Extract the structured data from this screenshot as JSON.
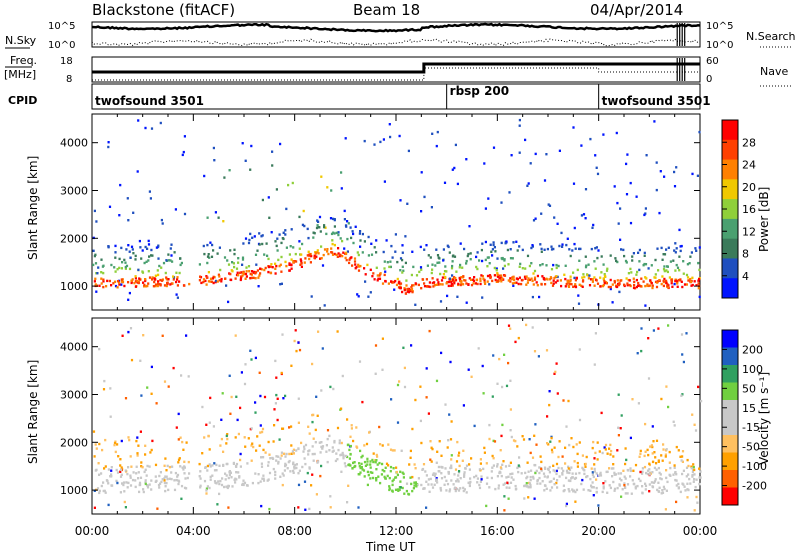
{
  "header": {
    "station": "Blackstone (fitACF)",
    "beam": "Beam 18",
    "date": "04/Apr/2014"
  },
  "left_labels": {
    "nsky": "N.Sky",
    "freq": "Freq.",
    "mhz": "[MHz]",
    "cpid": "CPID"
  },
  "right_labels": {
    "nsearch": "N.Search",
    "nave": "Nave"
  },
  "noise_ticks": {
    "top": "10^5",
    "bottom": "10^0"
  },
  "freq_ticks": {
    "top": "18",
    "bottom": "8"
  },
  "nave_ticks": {
    "top": "60",
    "bottom": "0"
  },
  "cpid_segments": [
    {
      "label": "twofsound 3501",
      "start_hour": 0
    },
    {
      "label": "rbsp 200",
      "start_hour": 14
    },
    {
      "label": "twofsound 3501",
      "start_hour": 20
    }
  ],
  "colors": {
    "power": [
      "#0014ff",
      "#1f4fbf",
      "#3a7a5a",
      "#4aa070",
      "#8fcf3a",
      "#f0c800",
      "#ff8000",
      "#ff4000",
      "#ff0000"
    ],
    "velocity": [
      "#ff0000",
      "#ff6000",
      "#ffa000",
      "#ffc060",
      "#c8c8c8",
      "#c8c8c8",
      "#70d040",
      "#30a060",
      "#2060c0",
      "#0000ff"
    ]
  },
  "chart_data": [
    {
      "type": "heatmap",
      "panel": "power",
      "ylabel": "Slant Range [km]",
      "xlabel": "Time UT",
      "x_ticks": [
        "00:00",
        "04:00",
        "08:00",
        "12:00",
        "16:00",
        "20:00",
        "00:00"
      ],
      "xlim_hours": [
        0,
        24
      ],
      "y_ticks": [
        "1000",
        "2000",
        "3000",
        "4000"
      ],
      "ylim": [
        500,
        4600
      ],
      "colorbar": {
        "label": "Power [dB]",
        "ticks": [
          "4",
          "8",
          "12",
          "16",
          "20",
          "24",
          "28"
        ],
        "range": [
          0,
          30
        ]
      },
      "scatter_band_km": [
        {
          "hour": 0,
          "km": 1100
        },
        {
          "hour": 3.7,
          "km": 1150
        },
        {
          "hour": 4.2,
          "km": 1150
        },
        {
          "hour": 6,
          "km": 1250
        },
        {
          "hour": 8,
          "km": 1500
        },
        {
          "hour": 9.5,
          "km": 1800
        },
        {
          "hour": 11,
          "km": 1300
        },
        {
          "hour": 12.5,
          "km": 950
        },
        {
          "hour": 13,
          "km": 1100
        },
        {
          "hour": 16,
          "km": 1200
        },
        {
          "hour": 20,
          "km": 1100
        },
        {
          "hour": 24,
          "km": 1100
        }
      ],
      "data_gap_hours": [
        3.8,
        4.2
      ]
    },
    {
      "type": "heatmap",
      "panel": "velocity",
      "ylabel": "Slant Range [km]",
      "xlabel": "Time UT",
      "x_ticks": [
        "00:00",
        "04:00",
        "08:00",
        "12:00",
        "16:00",
        "20:00",
        "00:00"
      ],
      "xlim_hours": [
        0,
        24
      ],
      "y_ticks": [
        "1000",
        "2000",
        "3000",
        "4000"
      ],
      "ylim": [
        500,
        4600
      ],
      "colorbar": {
        "label": "Velocity [m s⁻¹]",
        "ticks": [
          "200",
          "100",
          "50",
          "15",
          "-15",
          "-50",
          "-100",
          "-200"
        ],
        "range": [
          -250,
          250
        ]
      },
      "data_gap_hours": [
        3.8,
        4.2
      ]
    }
  ]
}
